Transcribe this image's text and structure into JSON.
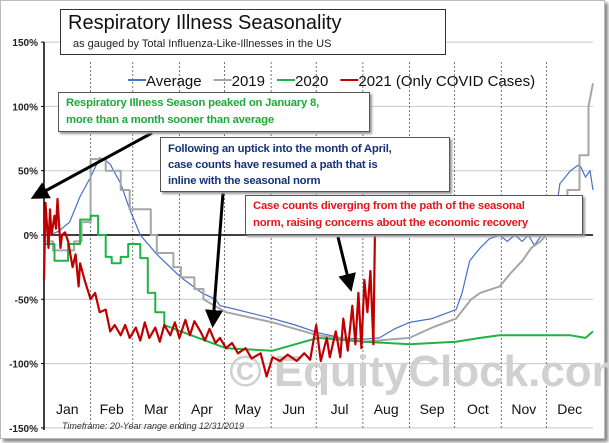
{
  "chart_data": {
    "type": "line",
    "title": "Respiratory Illness Seasonality",
    "subtitle": "as gauged by Total Influenza-Like-Illnesses in the US",
    "xlabel": "",
    "ylabel": "",
    "x_unit": "day of year",
    "xlim": [
      0,
      365
    ],
    "ylim": [
      -150,
      150
    ],
    "y_ticks": [
      "150%",
      "100%",
      "50%",
      "0%",
      "-50%",
      "-100%",
      "-150%"
    ],
    "y_tick_values": [
      150,
      100,
      50,
      0,
      -50,
      -100,
      -150
    ],
    "x_tick_labels": [
      "Jan",
      "Feb",
      "Mar",
      "Apr",
      "May",
      "Jun",
      "Jul",
      "Aug",
      "Sep",
      "Oct",
      "Nov",
      "Dec"
    ],
    "grid": "horizontal solid at 50% steps, vertical dashed at month boundaries",
    "legend_position": "top",
    "footnote": "Timeframe: 20-Year range ending 12/31/2019",
    "watermark": "© EquityClock.com",
    "series": [
      {
        "name": "Average",
        "color": "#4472c4",
        "points": [
          [
            0,
            0
          ],
          [
            4,
            0
          ],
          [
            10,
            3
          ],
          [
            17,
            10
          ],
          [
            24,
            30
          ],
          [
            31,
            45
          ],
          [
            37,
            60
          ],
          [
            41,
            58
          ],
          [
            44,
            55
          ],
          [
            51,
            40
          ],
          [
            57,
            20
          ],
          [
            64,
            0
          ],
          [
            75,
            -15
          ],
          [
            91,
            -33
          ],
          [
            105,
            -45
          ],
          [
            114,
            -50
          ],
          [
            117,
            -55
          ],
          [
            121,
            -56
          ],
          [
            135,
            -60
          ],
          [
            152,
            -65
          ],
          [
            167,
            -70
          ],
          [
            182,
            -76
          ],
          [
            198,
            -80
          ],
          [
            213,
            -81
          ],
          [
            223,
            -80
          ],
          [
            233,
            -73
          ],
          [
            243,
            -68
          ],
          [
            258,
            -65
          ],
          [
            274,
            -58
          ],
          [
            278,
            -45
          ],
          [
            283,
            -20
          ],
          [
            290,
            -10
          ],
          [
            296,
            -3
          ],
          [
            303,
            0
          ],
          [
            308,
            -5
          ],
          [
            313,
            0
          ],
          [
            318,
            -5
          ],
          [
            322,
            0
          ],
          [
            326,
            -8
          ],
          [
            334,
            5
          ],
          [
            340,
            15
          ],
          [
            343,
            40
          ],
          [
            350,
            50
          ],
          [
            356,
            55
          ],
          [
            360,
            45
          ],
          [
            363,
            50
          ],
          [
            365,
            35
          ]
        ]
      },
      {
        "name": "2019",
        "color": "#a6a6a6",
        "points": [
          [
            0,
            -5
          ],
          [
            6,
            -5
          ],
          [
            6,
            -12
          ],
          [
            20,
            -12
          ],
          [
            20,
            -5
          ],
          [
            25,
            -5
          ],
          [
            25,
            10
          ],
          [
            31,
            10
          ],
          [
            31,
            59
          ],
          [
            41,
            59
          ],
          [
            41,
            50
          ],
          [
            51,
            50
          ],
          [
            51,
            35
          ],
          [
            57,
            35
          ],
          [
            57,
            20
          ],
          [
            71,
            20
          ],
          [
            71,
            0
          ],
          [
            75,
            0
          ],
          [
            75,
            -14
          ],
          [
            86,
            -14
          ],
          [
            86,
            -25
          ],
          [
            91,
            -25
          ],
          [
            91,
            -33
          ],
          [
            100,
            -33
          ],
          [
            100,
            -42
          ],
          [
            106,
            -42
          ],
          [
            106,
            -50
          ],
          [
            121,
            -60
          ],
          [
            152,
            -68
          ],
          [
            182,
            -78
          ],
          [
            213,
            -83
          ],
          [
            243,
            -80
          ],
          [
            258,
            -72
          ],
          [
            274,
            -65
          ],
          [
            284,
            -50
          ],
          [
            290,
            -45
          ],
          [
            303,
            -40
          ],
          [
            310,
            -30
          ],
          [
            318,
            -20
          ],
          [
            324,
            -10
          ],
          [
            330,
            -5
          ],
          [
            334,
            0
          ],
          [
            343,
            0
          ],
          [
            343,
            10
          ],
          [
            348,
            10
          ],
          [
            348,
            35
          ],
          [
            356,
            35
          ],
          [
            356,
            62
          ],
          [
            362,
            62
          ],
          [
            362,
            100
          ],
          [
            365,
            118
          ]
        ]
      },
      {
        "name": "2020",
        "color": "#1fb347",
        "points": [
          [
            0,
            -7
          ],
          [
            7,
            -7
          ],
          [
            7,
            -20
          ],
          [
            16,
            -20
          ],
          [
            16,
            -7
          ],
          [
            24,
            -7
          ],
          [
            24,
            12
          ],
          [
            31,
            12
          ],
          [
            31,
            15
          ],
          [
            36,
            15
          ],
          [
            36,
            0
          ],
          [
            41,
            0
          ],
          [
            41,
            -17
          ],
          [
            45,
            -17
          ],
          [
            45,
            -22
          ],
          [
            51,
            -22
          ],
          [
            51,
            -17
          ],
          [
            56,
            -17
          ],
          [
            56,
            -7
          ],
          [
            64,
            -7
          ],
          [
            64,
            -18
          ],
          [
            69,
            -18
          ],
          [
            69,
            -45
          ],
          [
            74,
            -45
          ],
          [
            74,
            -60
          ],
          [
            80,
            -60
          ],
          [
            80,
            -70
          ],
          [
            91,
            -75
          ],
          [
            121,
            -88
          ],
          [
            152,
            -90
          ],
          [
            167,
            -85
          ],
          [
            182,
            -80
          ],
          [
            213,
            -83
          ],
          [
            243,
            -85
          ],
          [
            274,
            -83
          ],
          [
            290,
            -80
          ],
          [
            303,
            -78
          ],
          [
            334,
            -78
          ],
          [
            350,
            -78
          ],
          [
            360,
            -80
          ],
          [
            365,
            -75
          ]
        ]
      },
      {
        "name": "2021 (Only COVID Cases)",
        "color": "#c00000",
        "points": [
          [
            0,
            -35
          ],
          [
            1,
            25
          ],
          [
            3,
            -10
          ],
          [
            4,
            20
          ],
          [
            5,
            0
          ],
          [
            7,
            15
          ],
          [
            8,
            5
          ],
          [
            9,
            28
          ],
          [
            11,
            -10
          ],
          [
            12,
            0
          ],
          [
            14,
            2
          ],
          [
            16,
            -5
          ],
          [
            19,
            -25
          ],
          [
            21,
            -15
          ],
          [
            23,
            -40
          ],
          [
            24,
            -22
          ],
          [
            27,
            -35
          ],
          [
            31,
            -50
          ],
          [
            34,
            -45
          ],
          [
            37,
            -60
          ],
          [
            41,
            -58
          ],
          [
            44,
            -75
          ],
          [
            47,
            -70
          ],
          [
            51,
            -78
          ],
          [
            54,
            -70
          ],
          [
            57,
            -80
          ],
          [
            61,
            -72
          ],
          [
            64,
            -82
          ],
          [
            67,
            -68
          ],
          [
            70,
            -80
          ],
          [
            74,
            -72
          ],
          [
            77,
            -83
          ],
          [
            80,
            -70
          ],
          [
            84,
            -78
          ],
          [
            87,
            -68
          ],
          [
            90,
            -80
          ],
          [
            94,
            -66
          ],
          [
            97,
            -78
          ],
          [
            100,
            -67
          ],
          [
            104,
            -75
          ],
          [
            107,
            -82
          ],
          [
            110,
            -73
          ],
          [
            114,
            -84
          ],
          [
            117,
            -80
          ],
          [
            121,
            -88
          ],
          [
            125,
            -84
          ],
          [
            129,
            -92
          ],
          [
            134,
            -88
          ],
          [
            138,
            -96
          ],
          [
            144,
            -92
          ],
          [
            148,
            -110
          ],
          [
            152,
            -95
          ],
          [
            157,
            -98
          ],
          [
            162,
            -93
          ],
          [
            168,
            -98
          ],
          [
            173,
            -92
          ],
          [
            177,
            -97
          ],
          [
            181,
            -70
          ],
          [
            184,
            -98
          ],
          [
            188,
            -80
          ],
          [
            190,
            -95
          ],
          [
            194,
            -75
          ],
          [
            197,
            -95
          ],
          [
            199,
            -65
          ],
          [
            202,
            -90
          ],
          [
            205,
            -55
          ],
          [
            207,
            -85
          ],
          [
            209,
            -45
          ],
          [
            211,
            -88
          ],
          [
            213,
            -35
          ],
          [
            215,
            -60
          ],
          [
            217,
            -28
          ],
          [
            219,
            -85
          ],
          [
            220,
            0
          ]
        ]
      }
    ],
    "annotations": [
      {
        "text": "Respiratory Illness Season peaked on January 8, more than a month sooner than average",
        "color": "#1fa83a"
      },
      {
        "text": "Following an uptick into the month of April, case counts have resumed a path that is inline with the seasonal norm",
        "color": "#14317a"
      },
      {
        "text": "Case counts diverging from the path of the seasonal norm, raising concerns about the economic recovery",
        "color": "#e8141a"
      }
    ]
  },
  "annotation_lines": {
    "ann1": [
      "Respiratory Illness Season peaked on January 8,",
      "more than a month sooner than average"
    ],
    "ann2": [
      "Following an uptick into the month of April,",
      "case counts have resumed a path that is",
      "inline with the seasonal norm"
    ],
    "ann3": [
      "Case counts diverging from the path of the seasonal",
      "norm, raising concerns about the economic recovery"
    ]
  }
}
